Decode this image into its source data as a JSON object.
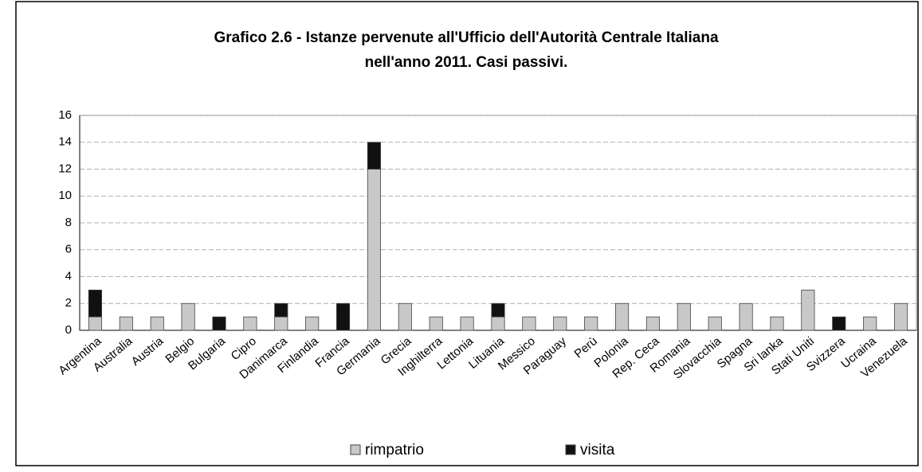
{
  "chart_data": {
    "type": "stacked_bar",
    "title": "Grafico 2.6 - Istanze pervenute all'Ufficio dell'Autorità Centrale Italiana",
    "subtitle": "nell'anno 2011. Casi passivi.",
    "categories": [
      "Argentina",
      "Australia",
      "Austria",
      "Belgio",
      "Bulgaria",
      "Cipro",
      "Danimarca",
      "Finlandia",
      "Francia",
      "Germania",
      "Grecia",
      "Inghilterra",
      "Lettonia",
      "Lituania",
      "Messico",
      "Paraguay",
      "Perù",
      "Polonia",
      "Rep. Ceca",
      "Romania",
      "Slovacchia",
      "Spagna",
      "Sri lanka",
      "Stati Uniti",
      "Svizzera",
      "Ucraina",
      "Venezuela"
    ],
    "series": [
      {
        "name": "rimpatrio",
        "color": "#c8c8c8",
        "values": [
          1,
          1,
          1,
          2,
          0,
          1,
          1,
          1,
          0,
          12,
          2,
          1,
          1,
          1,
          1,
          1,
          1,
          2,
          1,
          2,
          1,
          2,
          1,
          3,
          0,
          1,
          2
        ]
      },
      {
        "name": "visita",
        "color": "#111111",
        "values": [
          2,
          0,
          0,
          0,
          1,
          0,
          1,
          0,
          2,
          2,
          0,
          0,
          0,
          1,
          0,
          0,
          0,
          0,
          0,
          0,
          0,
          0,
          0,
          0,
          1,
          0,
          0
        ]
      }
    ],
    "ylim": [
      0,
      16
    ],
    "yticks": [
      0,
      2,
      4,
      6,
      8,
      10,
      12,
      14,
      16
    ],
    "grid": true,
    "legend": "bottom"
  }
}
